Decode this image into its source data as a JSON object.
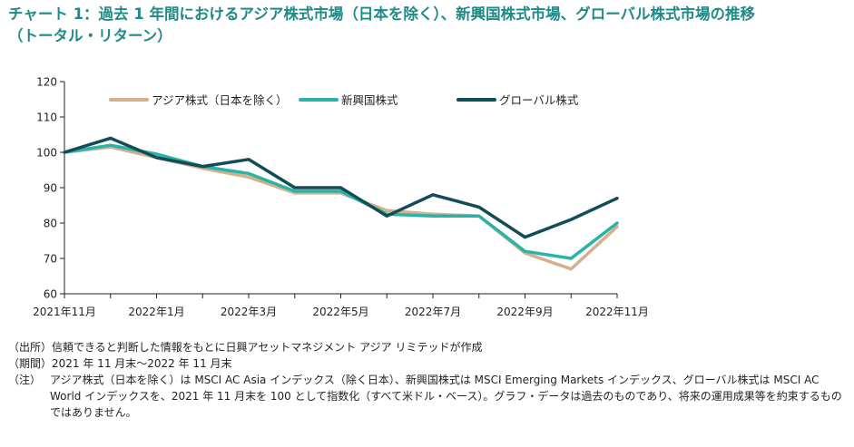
{
  "title": {
    "line1": "チャート 1：過去 1 年間におけるアジア株式市場（日本を除く）、新興国株式市場、グローバル株式市場の推移",
    "line2": "（トータル・リターン）"
  },
  "chart_data": {
    "type": "line",
    "title": "",
    "xlabel": "",
    "ylabel": "",
    "x": [
      "2021年11月",
      "2021年12月",
      "2022年1月",
      "2022年2月",
      "2022年3月",
      "2022年4月",
      "2022年5月",
      "2022年6月",
      "2022年7月",
      "2022年8月",
      "2022年9月",
      "2022年10月",
      "2022年11月"
    ],
    "x_tick_labels": [
      "2021年11月",
      "2022年1月",
      "2022年3月",
      "2022年5月",
      "2022年7月",
      "2022年9月",
      "2022年11月"
    ],
    "ylim": [
      60,
      120
    ],
    "yticks": [
      60,
      70,
      80,
      90,
      100,
      110,
      120
    ],
    "grid": false,
    "legend_position": "top",
    "series": [
      {
        "name": "アジア株式（日本を除く）",
        "color": "#d4b08c",
        "values": [
          100,
          101.5,
          98.5,
          95.5,
          93,
          88.5,
          88.5,
          83.5,
          82.5,
          82,
          71.5,
          67,
          79
        ]
      },
      {
        "name": "新興国株式",
        "color": "#2ab3a6",
        "values": [
          100,
          102,
          99.5,
          96,
          94,
          89,
          89,
          82.5,
          82,
          82,
          72,
          70,
          80
        ]
      },
      {
        "name": "グローバル株式",
        "color": "#124c58",
        "values": [
          100,
          104,
          98.5,
          96,
          98,
          90,
          90,
          82,
          88,
          84.5,
          76,
          81,
          87
        ]
      }
    ]
  },
  "notes": [
    {
      "label": "（出所）",
      "text": "信頼できると判断した情報をもとに日興アセットマネジメント アジア リミテッドが作成"
    },
    {
      "label": "（期間）",
      "text": "2021 年 11 月末～2022 年 11 月末"
    },
    {
      "label": "（注）",
      "text": "アジア株式（日本を除く）は MSCI AC Asia インデックス（除く日本）、新興国株式は MSCI Emerging Markets インデックス、グローバル株式は MSCI AC World インデックスを、2021 年 11 月末を 100 として指数化（すべて米ドル・ベース）。グラフ・データは過去のものであり、将来の運用成果等を約束するものではありません。"
    }
  ]
}
